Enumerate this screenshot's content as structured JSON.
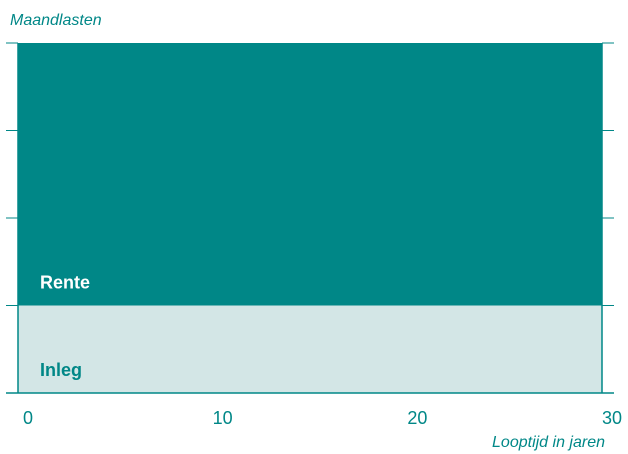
{
  "chart_data": {
    "type": "area",
    "ylabel": "Maandlasten",
    "xlabel": "Looptijd in jaren",
    "xlim": [
      0,
      30
    ],
    "x_ticks": [
      "0",
      "10",
      "20",
      "30"
    ],
    "y_axis_numeric_labels": false,
    "series": [
      {
        "name": "Inleg",
        "x": [
          0,
          30
        ],
        "values": [
          1,
          1
        ],
        "color": "#d3e6e6",
        "label_color": "#008787"
      },
      {
        "name": "Rente",
        "x": [
          0,
          30
        ],
        "values": [
          3,
          3
        ],
        "color": "#008787",
        "label_color": "#ffffff"
      }
    ],
    "stacked": true,
    "ylim": [
      0,
      4
    ],
    "axis_color": "#008787",
    "legend": "none"
  }
}
